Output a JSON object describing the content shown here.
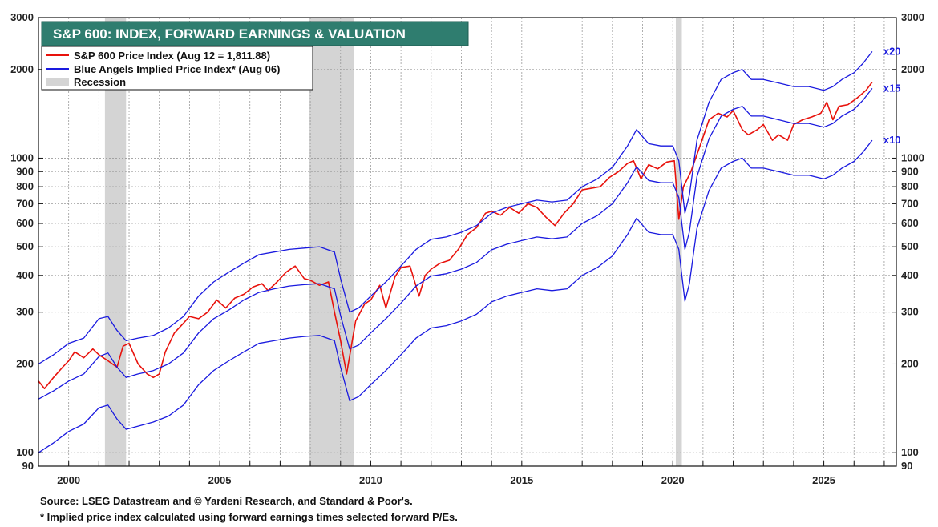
{
  "chart_data": {
    "type": "line",
    "title": "S&P 600: INDEX, FORWARD EARNINGS & VALUATION",
    "yscale": "log",
    "ylim": [
      90,
      3000
    ],
    "xlim": [
      1999.0,
      2027.4
    ],
    "grid": true,
    "legend_position": "top-left",
    "y_ticks": [
      90,
      100,
      200,
      300,
      400,
      500,
      600,
      700,
      800,
      900,
      1000,
      2000,
      3000
    ],
    "x_ticks": [
      2000,
      2005,
      2010,
      2015,
      2020,
      2025
    ],
    "legend": [
      {
        "label": "S&P 600 Price Index (Aug 12 = 1,811.88)",
        "color": "#e8120c",
        "kind": "line"
      },
      {
        "label": "Blue Angels Implied Price Index* (Aug 06)",
        "color": "#1a1adf",
        "kind": "line"
      },
      {
        "label": "Recession",
        "color": "#d4d4d4",
        "kind": "box"
      }
    ],
    "recessions": [
      [
        2001.2,
        2001.9
      ],
      [
        2007.95,
        2009.45
      ],
      [
        2020.1,
        2020.3
      ]
    ],
    "band_labels": [
      "x20",
      "x15",
      "x10"
    ],
    "series": [
      {
        "name": "S&P 600 Price Index",
        "color": "#e8120c",
        "x": [
          1999.0,
          1999.2,
          1999.5,
          1999.8,
          2000.0,
          2000.2,
          2000.5,
          2000.8,
          2001.0,
          2001.3,
          2001.6,
          2001.8,
          2002.0,
          2002.3,
          2002.6,
          2002.8,
          2003.0,
          2003.2,
          2003.5,
          2003.8,
          2004.0,
          2004.3,
          2004.6,
          2004.9,
          2005.2,
          2005.5,
          2005.8,
          2006.1,
          2006.4,
          2006.6,
          2006.9,
          2007.2,
          2007.5,
          2007.8,
          2008.0,
          2008.3,
          2008.6,
          2008.8,
          2009.0,
          2009.2,
          2009.5,
          2009.8,
          2010.0,
          2010.3,
          2010.5,
          2010.8,
          2011.0,
          2011.3,
          2011.6,
          2011.8,
          2012.0,
          2012.3,
          2012.6,
          2012.9,
          2013.2,
          2013.5,
          2013.8,
          2014.0,
          2014.3,
          2014.6,
          2014.9,
          2015.2,
          2015.5,
          2015.8,
          2016.1,
          2016.4,
          2016.7,
          2017.0,
          2017.3,
          2017.6,
          2017.9,
          2018.2,
          2018.5,
          2018.7,
          2018.95,
          2019.2,
          2019.5,
          2019.8,
          2020.05,
          2020.2,
          2020.35,
          2020.6,
          2020.9,
          2021.2,
          2021.5,
          2021.8,
          2022.0,
          2022.3,
          2022.5,
          2022.8,
          2023.0,
          2023.3,
          2023.5,
          2023.8,
          2024.0,
          2024.3,
          2024.6,
          2024.9,
          2025.1,
          2025.3,
          2025.5,
          2025.8,
          2026.1,
          2026.4,
          2026.6
        ],
        "values": [
          175,
          165,
          180,
          195,
          205,
          220,
          210,
          225,
          215,
          205,
          195,
          230,
          235,
          200,
          185,
          180,
          185,
          220,
          255,
          275,
          290,
          285,
          300,
          330,
          310,
          335,
          345,
          365,
          375,
          355,
          380,
          410,
          430,
          390,
          385,
          370,
          380,
          300,
          240,
          185,
          280,
          320,
          330,
          370,
          310,
          395,
          425,
          430,
          340,
          400,
          420,
          440,
          450,
          490,
          550,
          580,
          650,
          660,
          640,
          680,
          650,
          700,
          680,
          630,
          590,
          650,
          700,
          780,
          790,
          800,
          860,
          900,
          960,
          980,
          850,
          950,
          920,
          970,
          980,
          620,
          800,
          900,
          1100,
          1350,
          1420,
          1380,
          1450,
          1250,
          1200,
          1250,
          1300,
          1150,
          1200,
          1150,
          1300,
          1350,
          1380,
          1420,
          1550,
          1350,
          1500,
          1520,
          1600,
          1700,
          1812
        ]
      },
      {
        "name": "x20",
        "color": "#1a1adf",
        "x": [
          1999.0,
          1999.5,
          2000.0,
          2000.5,
          2001.0,
          2001.3,
          2001.6,
          2001.9,
          2002.3,
          2002.8,
          2003.3,
          2003.8,
          2004.3,
          2004.8,
          2005.3,
          2005.8,
          2006.3,
          2006.8,
          2007.3,
          2007.8,
          2008.3,
          2008.8,
          2009.0,
          2009.3,
          2009.6,
          2010.0,
          2010.5,
          2011.0,
          2011.5,
          2012.0,
          2012.5,
          2013.0,
          2013.5,
          2014.0,
          2014.5,
          2015.0,
          2015.5,
          2016.0,
          2016.5,
          2017.0,
          2017.5,
          2018.0,
          2018.5,
          2018.8,
          2019.2,
          2019.6,
          2020.0,
          2020.2,
          2020.4,
          2020.55,
          2020.8,
          2021.2,
          2021.6,
          2022.0,
          2022.3,
          2022.6,
          2023.0,
          2023.5,
          2024.0,
          2024.5,
          2025.0,
          2025.3,
          2025.6,
          2026.0,
          2026.3,
          2026.6
        ],
        "values": [
          200,
          215,
          235,
          245,
          285,
          290,
          260,
          240,
          245,
          250,
          265,
          290,
          340,
          380,
          410,
          440,
          470,
          480,
          490,
          495,
          500,
          480,
          390,
          300,
          310,
          340,
          380,
          430,
          490,
          530,
          540,
          560,
          590,
          650,
          680,
          700,
          720,
          710,
          720,
          800,
          850,
          930,
          1100,
          1250,
          1120,
          1100,
          1100,
          980,
          650,
          750,
          1150,
          1550,
          1850,
          1950,
          2000,
          1850,
          1850,
          1800,
          1750,
          1750,
          1700,
          1750,
          1850,
          1950,
          2100,
          2300
        ]
      },
      {
        "name": "x15",
        "color": "#1a1adf",
        "x": [
          1999.0,
          1999.5,
          2000.0,
          2000.5,
          2001.0,
          2001.3,
          2001.6,
          2001.9,
          2002.3,
          2002.8,
          2003.3,
          2003.8,
          2004.3,
          2004.8,
          2005.3,
          2005.8,
          2006.3,
          2006.8,
          2007.3,
          2007.8,
          2008.3,
          2008.8,
          2009.0,
          2009.3,
          2009.6,
          2010.0,
          2010.5,
          2011.0,
          2011.5,
          2012.0,
          2012.5,
          2013.0,
          2013.5,
          2014.0,
          2014.5,
          2015.0,
          2015.5,
          2016.0,
          2016.5,
          2017.0,
          2017.5,
          2018.0,
          2018.5,
          2018.8,
          2019.2,
          2019.6,
          2020.0,
          2020.2,
          2020.4,
          2020.55,
          2020.8,
          2021.2,
          2021.6,
          2022.0,
          2022.3,
          2022.6,
          2023.0,
          2023.5,
          2024.0,
          2024.5,
          2025.0,
          2025.3,
          2025.6,
          2026.0,
          2026.3,
          2026.6
        ],
        "values": [
          152,
          162,
          175,
          185,
          212,
          218,
          195,
          180,
          185,
          190,
          200,
          218,
          255,
          285,
          305,
          330,
          350,
          360,
          368,
          372,
          375,
          360,
          292,
          225,
          232,
          255,
          285,
          322,
          368,
          398,
          405,
          420,
          442,
          488,
          510,
          525,
          540,
          532,
          540,
          600,
          638,
          700,
          825,
          935,
          840,
          825,
          825,
          735,
          490,
          562,
          865,
          1165,
          1390,
          1465,
          1500,
          1390,
          1390,
          1350,
          1312,
          1312,
          1275,
          1312,
          1390,
          1465,
          1575,
          1725
        ]
      },
      {
        "name": "x10",
        "color": "#1a1adf",
        "x": [
          1999.0,
          1999.5,
          2000.0,
          2000.5,
          2001.0,
          2001.3,
          2001.6,
          2001.9,
          2002.3,
          2002.8,
          2003.3,
          2003.8,
          2004.3,
          2004.8,
          2005.3,
          2005.8,
          2006.3,
          2006.8,
          2007.3,
          2007.8,
          2008.3,
          2008.8,
          2009.0,
          2009.3,
          2009.6,
          2010.0,
          2010.5,
          2011.0,
          2011.5,
          2012.0,
          2012.5,
          2013.0,
          2013.5,
          2014.0,
          2014.5,
          2015.0,
          2015.5,
          2016.0,
          2016.5,
          2017.0,
          2017.5,
          2018.0,
          2018.5,
          2018.8,
          2019.2,
          2019.6,
          2020.0,
          2020.2,
          2020.4,
          2020.55,
          2020.8,
          2021.2,
          2021.6,
          2022.0,
          2022.3,
          2022.6,
          2023.0,
          2023.5,
          2024.0,
          2024.5,
          2025.0,
          2025.3,
          2025.6,
          2026.0,
          2026.3,
          2026.6
        ],
        "values": [
          100,
          108,
          118,
          125,
          142,
          145,
          130,
          120,
          123,
          127,
          133,
          145,
          170,
          190,
          205,
          220,
          235,
          240,
          245,
          248,
          250,
          240,
          195,
          150,
          155,
          170,
          190,
          215,
          245,
          265,
          270,
          280,
          295,
          325,
          340,
          350,
          360,
          355,
          360,
          400,
          425,
          465,
          550,
          625,
          560,
          550,
          550,
          490,
          327,
          375,
          577,
          777,
          925,
          975,
          1000,
          925,
          925,
          900,
          875,
          875,
          850,
          875,
          925,
          975,
          1050,
          1150
        ]
      }
    ]
  },
  "footnotes": {
    "source": "Source: LSEG Datastream and © Yardeni Research, and Standard & Poor's.",
    "note": "* Implied price index calculated using forward earnings times selected forward P/Es."
  }
}
